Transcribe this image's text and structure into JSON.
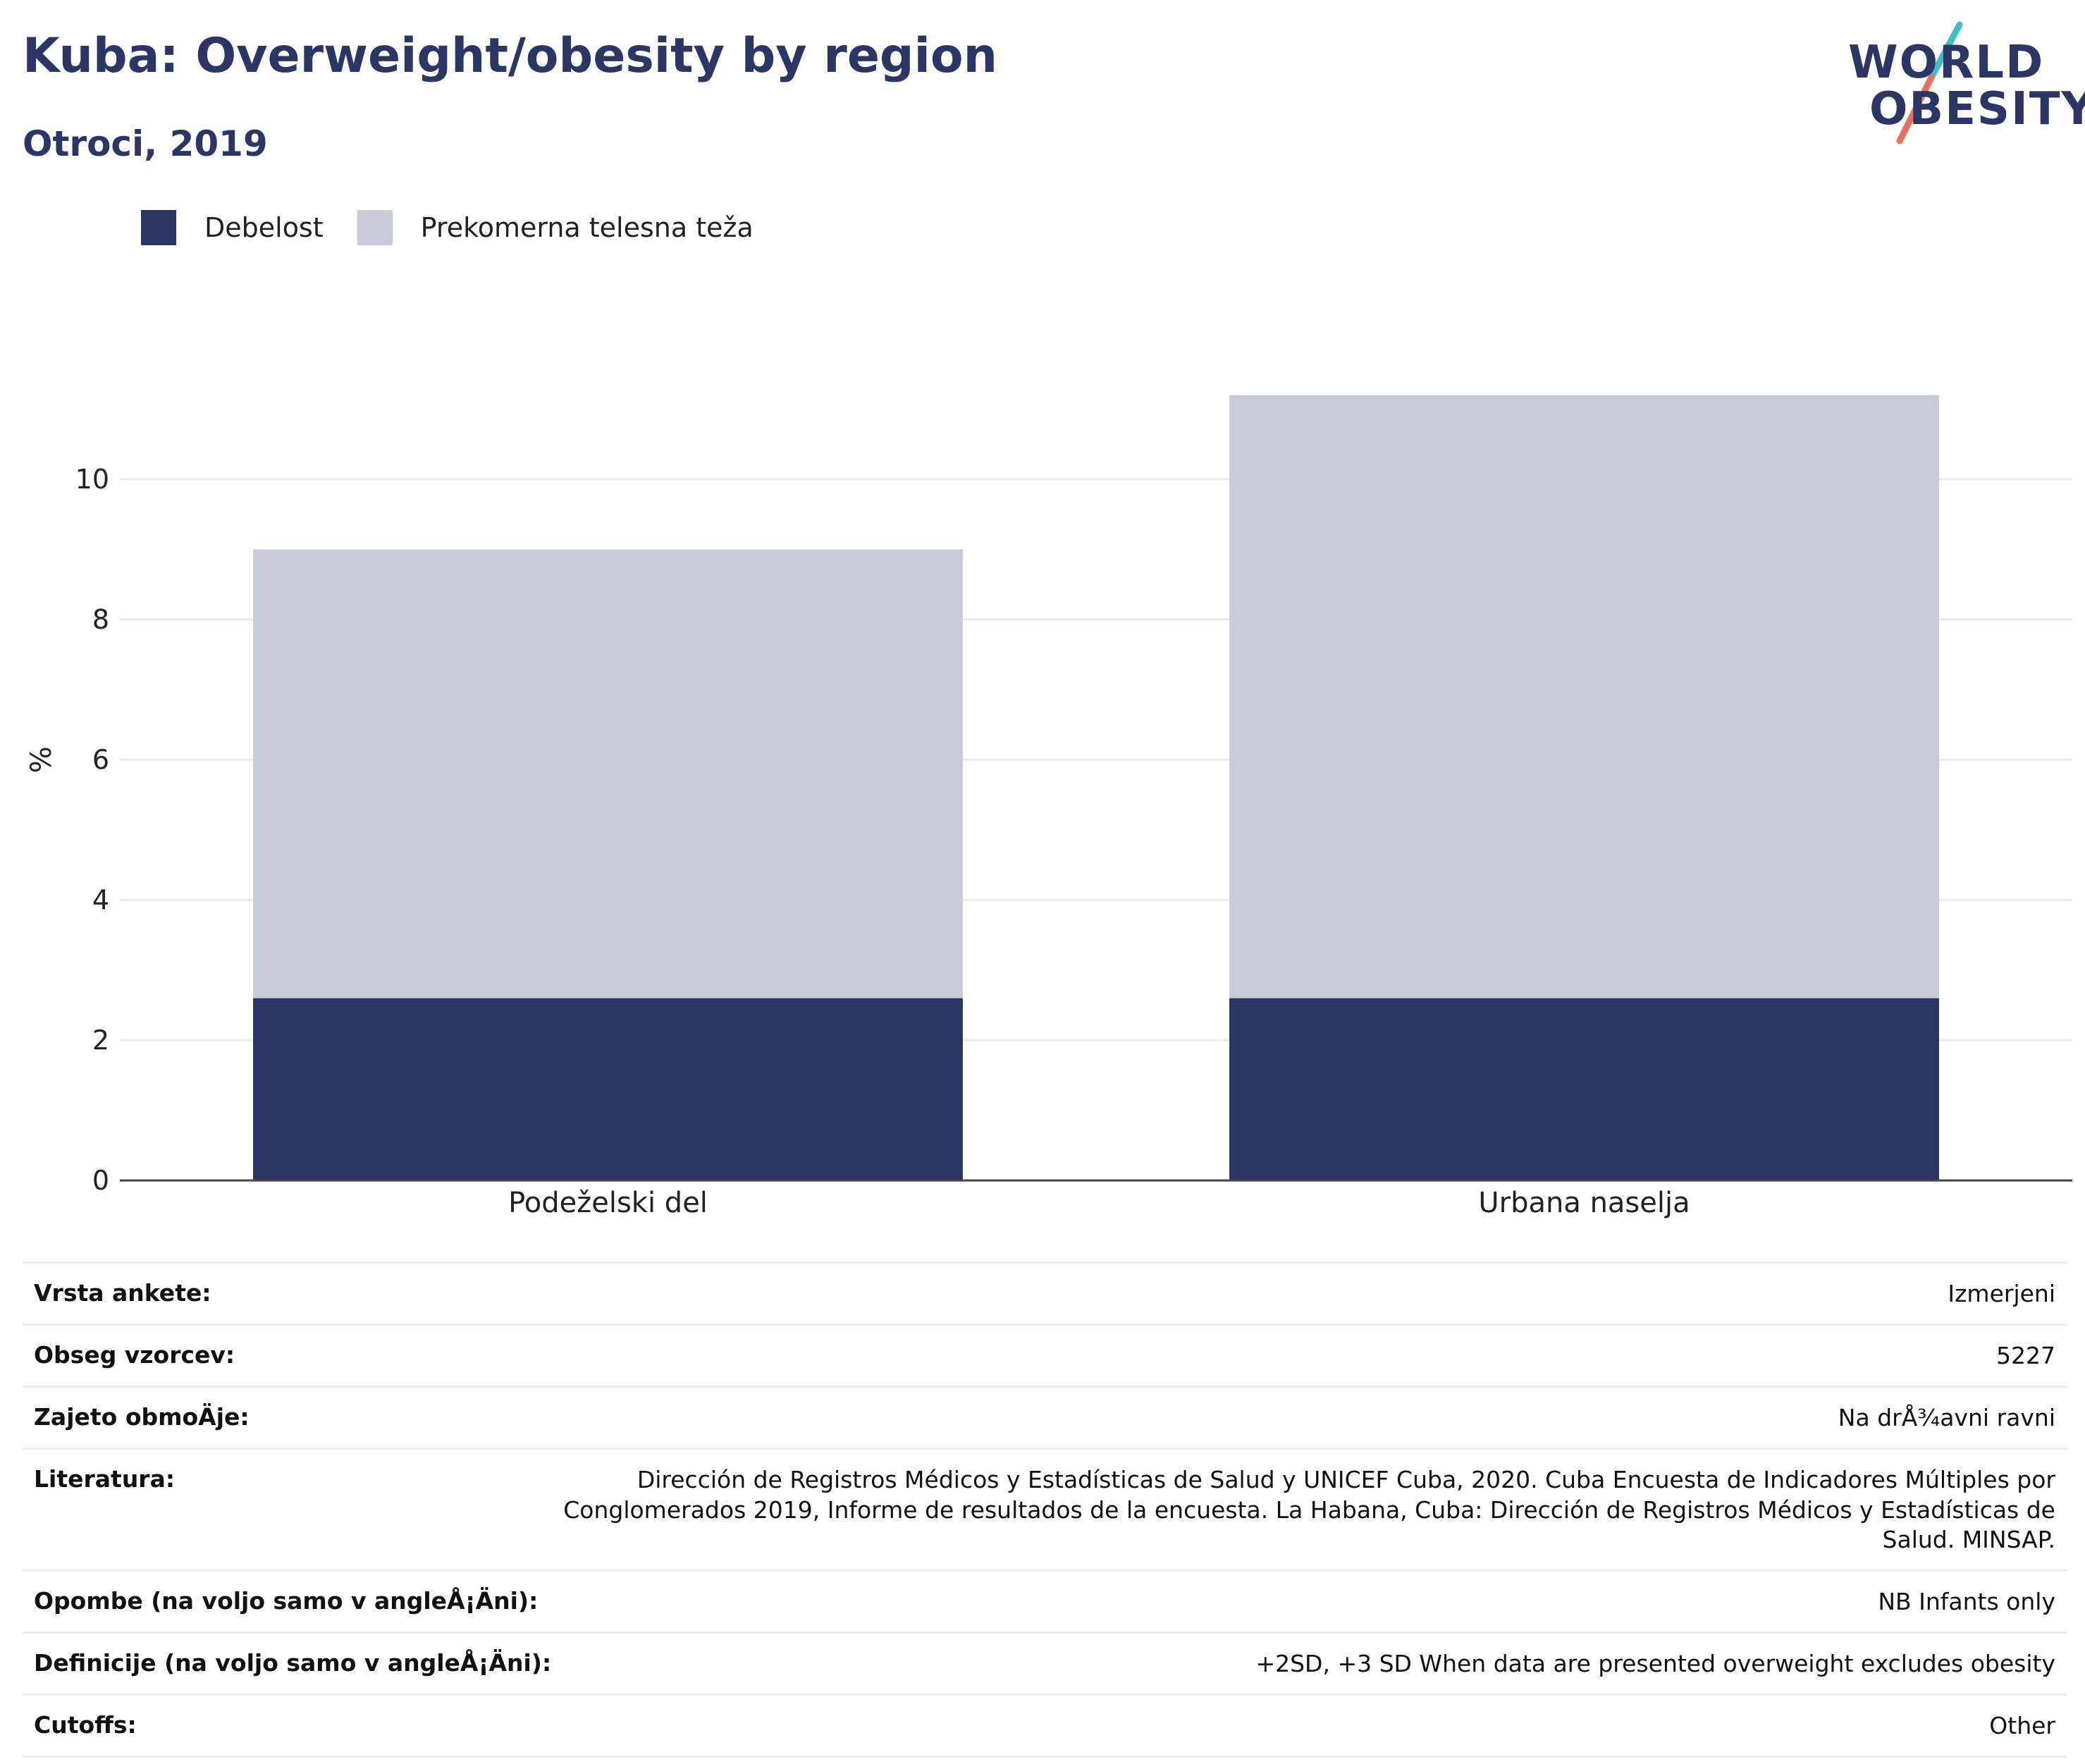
{
  "header": {
    "title": "Kuba: Overweight/obesity by region",
    "subtitle": "Otroci, 2019"
  },
  "logo": {
    "line1": "WORLD",
    "line2": "OBESITY",
    "slash_colors": [
      "#3cbfc6",
      "#e8705e"
    ]
  },
  "legend": {
    "items": [
      {
        "label": "Debelost",
        "color": "#2b3664"
      },
      {
        "label": "Prekomerna telesna teža",
        "color": "#c9ccd8"
      }
    ]
  },
  "chart_data": {
    "type": "bar",
    "stacked": true,
    "categories": [
      "Podeželski del",
      "Urbana naselja"
    ],
    "series": [
      {
        "name": "Debelost",
        "values": [
          2.6,
          2.6
        ],
        "color": "#2b3664"
      },
      {
        "name": "Prekomerna telesna teža",
        "values": [
          6.4,
          8.6
        ],
        "color": "#c9ccd8"
      }
    ],
    "ylabel": "%",
    "ylim": [
      0,
      12
    ],
    "yticks": [
      "0",
      "2",
      "4",
      "6",
      "8",
      "10"
    ],
    "grid": true
  },
  "meta": {
    "rows": [
      {
        "label": "Vrsta ankete:",
        "value": "Izmerjeni"
      },
      {
        "label": "Obseg vzorcev:",
        "value": "5227"
      },
      {
        "label": "Zajeto obmoÄ\u001fje:",
        "value": "Na drÅ¾avni ravni"
      },
      {
        "label": "Literatura:",
        "value": "Dirección de Registros Médicos y Estadísticas de Salud y UNICEF Cuba, 2020. Cuba Encuesta de Indicadores Múltiples por Conglomerados 2019, Informe de resultados de la encuesta. La Habana, Cuba: Dirección de Registros Médicos y Estadísticas de Salud. MINSAP."
      },
      {
        "label": "Opombe (na voljo samo v angleÅ¡Ä\u001fni):",
        "value": "NB Infants only"
      },
      {
        "label": "Definicije (na voljo samo v angleÅ¡Ä\u001fni):",
        "value": "+2SD, +3 SD When data are presented overweight excludes obesity"
      },
      {
        "label": "Cutoffs:",
        "value": "Other"
      }
    ]
  }
}
